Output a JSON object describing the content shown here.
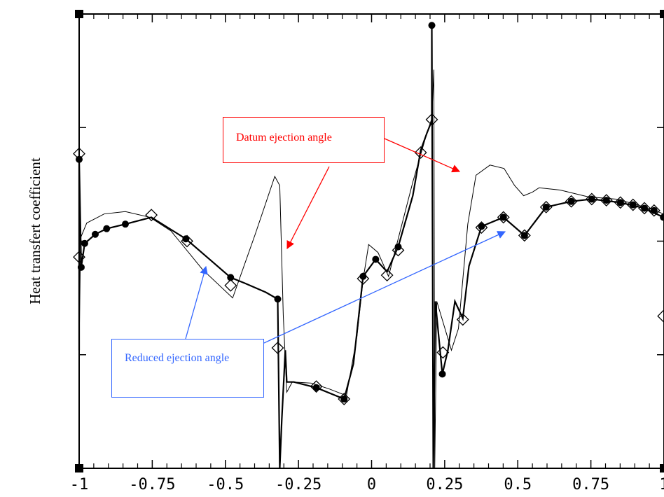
{
  "chart_data": {
    "type": "line",
    "ylabel": "Heat transfert coefficient",
    "xlim": [
      -1,
      1
    ],
    "xticks": [
      -1,
      -0.75,
      -0.5,
      -0.25,
      0,
      0.25,
      0.5,
      0.75,
      1
    ],
    "ylim": [
      0,
      4
    ],
    "yticks": [
      0,
      1,
      2,
      3,
      4
    ],
    "annotations": [
      {
        "text": "Datum ejection angle",
        "color": "#ff0000"
      },
      {
        "text": "Reduced ejection angle",
        "color": "#3366ff"
      }
    ],
    "series": [
      {
        "color": "#000000",
        "width": 1,
        "x": [
          -1.0,
          -0.995,
          -0.974,
          -0.914,
          -0.842,
          -0.758,
          -0.686,
          -0.578,
          -0.475,
          -0.398,
          -0.331,
          -0.314,
          -0.302,
          -0.29,
          -0.271,
          -0.206,
          -0.146,
          -0.086,
          -0.05,
          -0.029,
          -0.01,
          0.022,
          0.058,
          0.089,
          0.141,
          0.189,
          0.206,
          0.213,
          0.216,
          0.223,
          0.237,
          0.273,
          0.297,
          0.329,
          0.357,
          0.405,
          0.453,
          0.489,
          0.52,
          0.549,
          0.573,
          0.645,
          0.741,
          0.837,
          0.909,
          0.969,
          0.998
        ],
        "values": [
          1.04,
          2.03,
          2.16,
          2.24,
          2.26,
          2.21,
          2.09,
          1.75,
          1.5,
          2.06,
          2.57,
          2.49,
          1.35,
          0.67,
          0.76,
          0.75,
          0.7,
          0.64,
          1.16,
          1.66,
          1.97,
          1.9,
          1.69,
          2.0,
          2.52,
          2.95,
          3.08,
          3.51,
          0,
          1.47,
          1.35,
          1.04,
          1.23,
          2.15,
          2.58,
          2.67,
          2.64,
          2.49,
          2.4,
          2.43,
          2.47,
          2.45,
          2.39,
          2.37,
          2.32,
          2.27,
          2.24
        ]
      },
      {
        "color": "#000000",
        "width": 2.2,
        "x": [
          -1.0,
          -1.0,
          -0.993,
          -0.981,
          -0.945,
          -0.906,
          -0.842,
          -0.753,
          -0.635,
          -0.554,
          -0.482,
          -0.434,
          -0.362,
          -0.321,
          -0.314,
          -0.307,
          -0.295,
          -0.29,
          -0.266,
          -0.189,
          -0.094,
          -0.062,
          -0.029,
          0.014,
          0.053,
          0.091,
          0.141,
          0.168,
          0.189,
          0.206,
          0.206,
          0.211,
          0.218,
          0.242,
          0.261,
          0.285,
          0.312,
          0.333,
          0.376,
          0.451,
          0.523,
          0.597,
          0.683,
          0.753,
          0.851,
          0.933,
          0.998
        ],
        "values": [
          1.04,
          2.72,
          1.77,
          1.98,
          2.06,
          2.11,
          2.15,
          2.21,
          2.02,
          1.84,
          1.68,
          1.63,
          1.55,
          1.49,
          0,
          0.43,
          1.04,
          0.76,
          0.76,
          0.71,
          0.61,
          0.92,
          1.69,
          1.84,
          1.73,
          1.95,
          2.4,
          2.8,
          2.95,
          3.06,
          3.9,
          0,
          1.47,
          0.83,
          1.04,
          1.47,
          1.32,
          1.78,
          2.13,
          2.21,
          2.05,
          2.3,
          2.35,
          2.37,
          2.34,
          2.29,
          2.21
        ]
      },
      {
        "color": "#000000",
        "marker": "circle",
        "x": [
          -1.0,
          -0.993,
          -0.981,
          -0.945,
          -0.906,
          -0.842,
          -0.635,
          -0.482,
          -0.321,
          -0.189,
          -0.094,
          -0.029,
          0.014,
          0.091,
          0.206,
          0.242,
          0.376,
          0.451,
          0.523,
          0.597,
          0.683,
          0.753,
          0.803,
          0.851,
          0.894,
          0.933,
          0.966,
          0.998
        ],
        "values": [
          2.72,
          1.77,
          1.98,
          2.06,
          2.11,
          2.15,
          2.02,
          1.68,
          1.49,
          0.71,
          0.61,
          1.69,
          1.84,
          1.95,
          3.9,
          0.83,
          2.13,
          2.21,
          2.05,
          2.3,
          2.35,
          2.37,
          2.36,
          2.34,
          2.32,
          2.29,
          2.27,
          2.21
        ]
      },
      {
        "color": "#000000",
        "marker": "diamond",
        "x": [
          -1.0,
          -1.0,
          -0.753,
          -0.631,
          -0.482,
          -0.321,
          -0.189,
          -0.094,
          -0.029,
          0.053,
          0.091,
          0.168,
          0.206,
          0.244,
          0.312,
          0.376,
          0.451,
          0.523,
          0.597,
          0.683,
          0.753,
          0.803,
          0.851,
          0.894,
          0.933,
          0.966,
          0.998
        ],
        "values": [
          2.77,
          1.86,
          2.23,
          2.0,
          1.61,
          1.06,
          0.72,
          0.61,
          1.67,
          1.7,
          1.92,
          2.78,
          3.07,
          1.02,
          1.31,
          2.12,
          2.21,
          2.05,
          2.3,
          2.35,
          2.37,
          2.36,
          2.34,
          2.32,
          2.29,
          2.27,
          1.34
        ]
      }
    ]
  }
}
